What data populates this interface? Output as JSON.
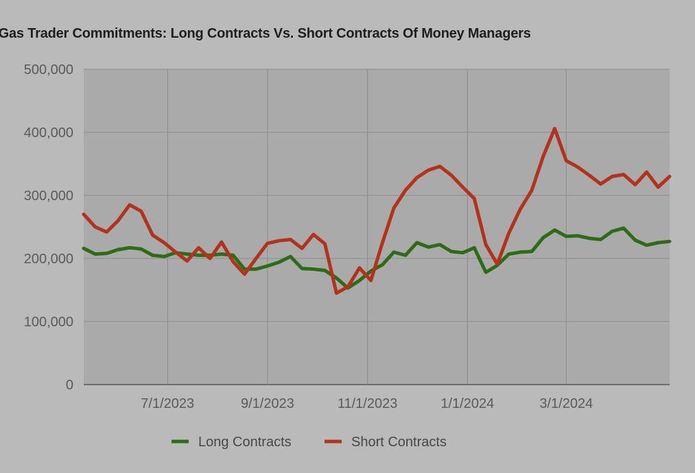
{
  "chart_data": {
    "type": "line",
    "title": "al Gas Trader Commitments: Long Contracts Vs. Short Contracts Of Money Managers",
    "ylim": [
      0,
      500000
    ],
    "y_ticks": [
      0,
      100000,
      200000,
      300000,
      400000,
      500000
    ],
    "y_tick_labels": [
      "0",
      "100,000",
      "200,000",
      "300,000",
      "400,000",
      "500,000"
    ],
    "x_tick_labels": [
      "7/1/2023",
      "9/1/2023",
      "11/1/2023",
      "1/1/2024",
      "3/1/2024"
    ],
    "x_ticks_week": [
      7.3,
      16.0,
      24.7,
      33.4,
      42.0
    ],
    "xlim_week": [
      0,
      51
    ],
    "grid": true,
    "legend_position": "bottom",
    "series": [
      {
        "name": "Long Contracts",
        "color": "#2e6b16",
        "values": [
          216000,
          207000,
          208000,
          214000,
          217000,
          215000,
          205000,
          203000,
          209000,
          207000,
          205000,
          205000,
          207000,
          205000,
          183000,
          183000,
          188000,
          194000,
          203000,
          184000,
          183000,
          181000,
          169000,
          153000,
          165000,
          180000,
          190000,
          210000,
          205000,
          225000,
          218000,
          222000,
          211000,
          209000,
          217000,
          178000,
          189000,
          207000,
          210000,
          211000,
          233000,
          245000,
          235000,
          236000,
          232000,
          230000,
          243000,
          248000,
          229000,
          221000,
          225000,
          227000
        ]
      },
      {
        "name": "Short Contracts",
        "color": "#b3321c",
        "values": [
          270000,
          250000,
          242000,
          260000,
          285000,
          275000,
          237000,
          225000,
          210000,
          196000,
          217000,
          200000,
          226000,
          195000,
          175000,
          200000,
          224000,
          228000,
          230000,
          216000,
          238000,
          223000,
          145000,
          155000,
          185000,
          165000,
          225000,
          280000,
          308000,
          328000,
          340000,
          346000,
          332000,
          313000,
          295000,
          222000,
          191000,
          240000,
          278000,
          308000,
          362000,
          406000,
          355000,
          345000,
          332000,
          318000,
          330000,
          333000,
          317000,
          337000,
          313000,
          330000
        ]
      }
    ]
  }
}
